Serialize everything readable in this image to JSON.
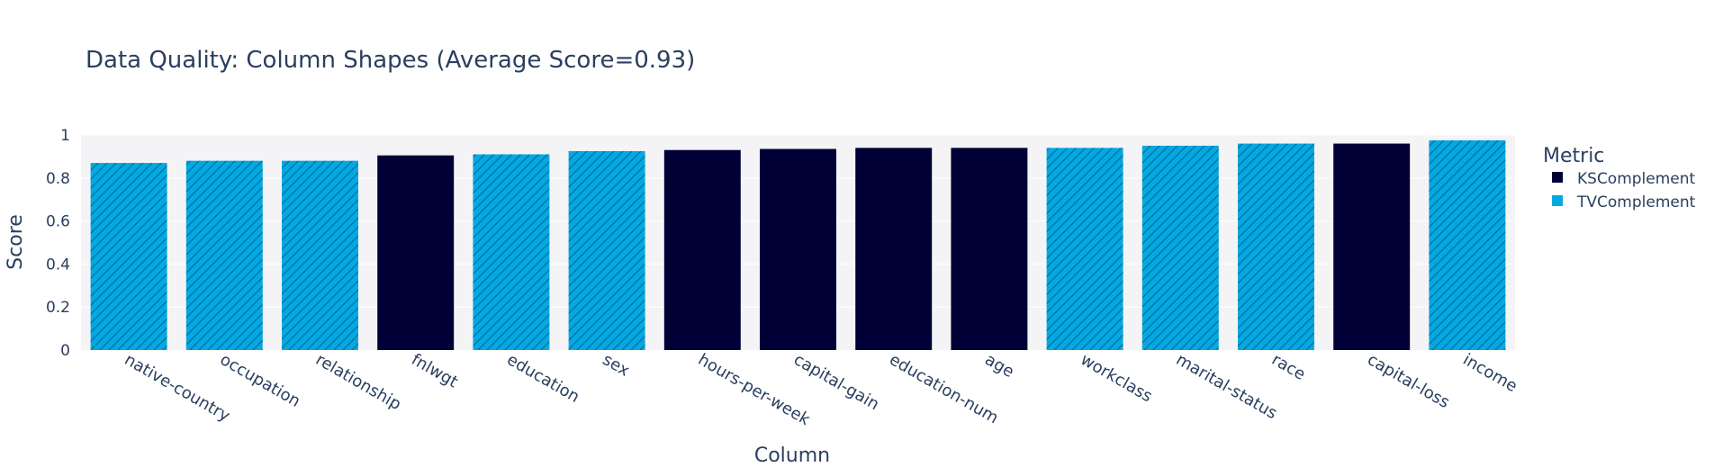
{
  "chart_data": {
    "type": "bar",
    "title": "Data Quality: Column Shapes (Average Score=0.93)",
    "xlabel": "Column",
    "ylabel": "Score",
    "ylim": [
      0,
      1
    ],
    "yticks": [
      "0",
      "0.2",
      "0.4",
      "0.6",
      "0.8",
      "1"
    ],
    "ytick_values": [
      0,
      0.2,
      0.4,
      0.6,
      0.8,
      1
    ],
    "grid": true,
    "legend": {
      "title": "Metric",
      "placement": "right",
      "entries": [
        {
          "name": "KSComplement",
          "color": "#000036"
        },
        {
          "name": "TVComplement",
          "color": "#03a9e0"
        }
      ]
    },
    "categories": [
      "native-country",
      "occupation",
      "relationship",
      "fnlwgt",
      "education",
      "sex",
      "hours-per-week",
      "capital-gain",
      "education-num",
      "age",
      "workclass",
      "marital-status",
      "race",
      "capital-loss",
      "income"
    ],
    "values": [
      0.87,
      0.88,
      0.88,
      0.905,
      0.91,
      0.925,
      0.93,
      0.935,
      0.94,
      0.94,
      0.94,
      0.95,
      0.96,
      0.96,
      0.975
    ],
    "metric": [
      "TVComplement",
      "TVComplement",
      "TVComplement",
      "KSComplement",
      "TVComplement",
      "TVComplement",
      "KSComplement",
      "KSComplement",
      "KSComplement",
      "KSComplement",
      "TVComplement",
      "TVComplement",
      "TVComplement",
      "KSComplement",
      "TVComplement"
    ],
    "colors": {
      "KSComplement": "#000036",
      "TVComplement": "#03a9e0",
      "hatch": "#006ea0",
      "plot_bg": "#f4f4f6",
      "text": "#2a3f5f"
    }
  }
}
